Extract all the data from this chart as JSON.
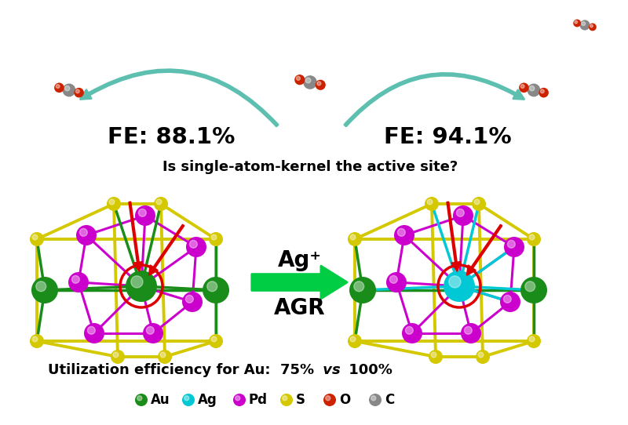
{
  "background_color": "#ffffff",
  "fe_left": "FE: 88.1%",
  "fe_right": "FE: 94.1%",
  "question_text": "Is single-atom-kernel the active site?",
  "arrow_label_top": "Ag⁺",
  "arrow_label_bottom": "AGR",
  "util_text": "Utilization efficiency for Au:  75%  vs  100%",
  "legend_items": [
    {
      "label": "Au",
      "color": "#1a8c1a"
    },
    {
      "label": "Ag",
      "color": "#00c8d4"
    },
    {
      "label": "Pd",
      "color": "#cc00cc"
    },
    {
      "label": "S",
      "color": "#d4c800"
    },
    {
      "label": "O",
      "color": "#cc2200"
    },
    {
      "label": "C",
      "color": "#888888"
    }
  ],
  "fe_fontsize": 21,
  "question_fontsize": 13,
  "util_fontsize": 13,
  "legend_fontsize": 12,
  "arrow_label_fontsize": 20,
  "curve_arrow_color": "#5dbfb0",
  "straight_arrow_color": "#00cc44",
  "red_circle_color": "#dd0000",
  "red_arrow_color": "#dd0000",
  "cyan_bond_color": "#00cccc",
  "fig_width": 8.0,
  "fig_height": 5.42
}
